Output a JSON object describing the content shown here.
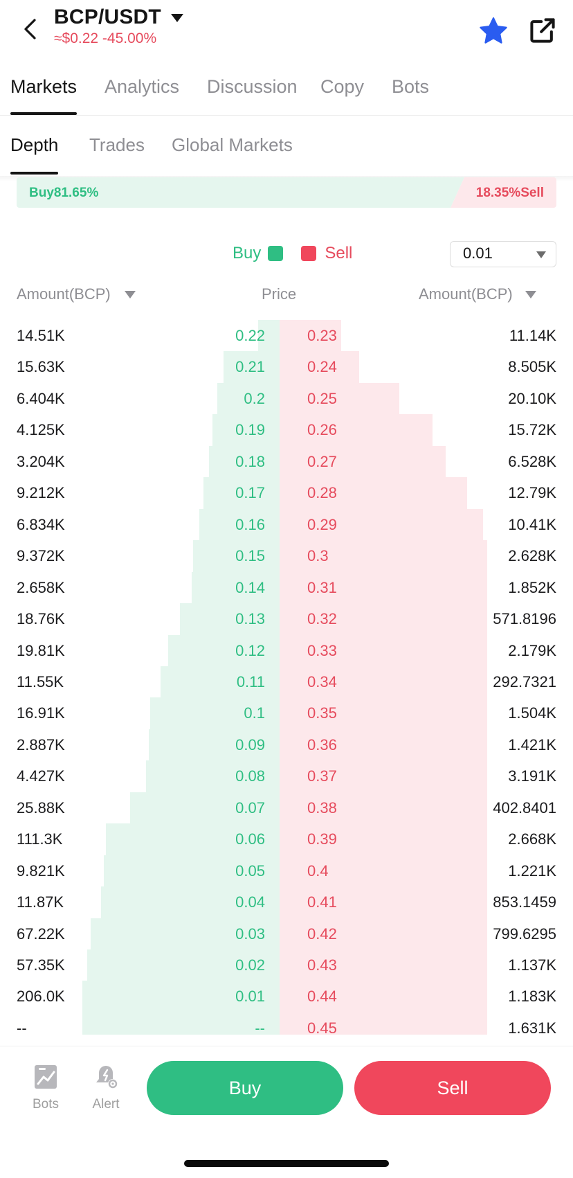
{
  "header": {
    "pair": "BCP/USDT",
    "price_change": "≈$0.22 -45.00%"
  },
  "main_tabs": [
    {
      "label": "Markets",
      "active": true
    },
    {
      "label": "Analytics",
      "active": false
    },
    {
      "label": "Discussion",
      "active": false
    },
    {
      "label": "Copy",
      "active": false
    },
    {
      "label": "Bots",
      "active": false
    }
  ],
  "sub_tabs": [
    {
      "label": "Depth",
      "active": true
    },
    {
      "label": "Trades",
      "active": false
    },
    {
      "label": "Global Markets",
      "active": false
    }
  ],
  "ratio": {
    "buy_label": "Buy81.65%",
    "sell_label": "18.35%Sell",
    "buy_fraction": 0.8165
  },
  "legend": {
    "buy": "Buy",
    "sell": "Sell"
  },
  "precision": "0.01",
  "columns": {
    "left": "Amount(BCP)",
    "center": "Price",
    "right": "Amount(BCP)"
  },
  "colors": {
    "buy": "#2fbe83",
    "sell": "#f0475c",
    "buy_depth": "#e5f6ee",
    "sell_depth": "#fde8eb"
  },
  "order_book": [
    {
      "bid_amount": "14.51K",
      "bid_price": "0.22",
      "ask_price": "0.23",
      "ask_amount": "11.14K",
      "bid_depth": 0.098,
      "ask_depth": 0.101
    },
    {
      "bid_amount": "15.63K",
      "bid_price": "0.21",
      "ask_price": "0.24",
      "ask_amount": "8.505K",
      "bid_depth": 0.253,
      "ask_depth": 0.131
    },
    {
      "bid_amount": "6.404K",
      "bid_price": "0.2",
      "ask_price": "0.25",
      "ask_amount": "20.10K",
      "bid_depth": 0.281,
      "ask_depth": 0.196
    },
    {
      "bid_amount": "4.125K",
      "bid_price": "0.19",
      "ask_price": "0.26",
      "ask_amount": "15.72K",
      "bid_depth": 0.302,
      "ask_depth": 0.251
    },
    {
      "bid_amount": "3.204K",
      "bid_price": "0.18",
      "ask_price": "0.27",
      "ask_amount": "6.528K",
      "bid_depth": 0.318,
      "ask_depth": 0.272
    },
    {
      "bid_amount": "9.212K",
      "bid_price": "0.17",
      "ask_price": "0.28",
      "ask_amount": "12.79K",
      "bid_depth": 0.344,
      "ask_depth": 0.307
    },
    {
      "bid_amount": "6.834K",
      "bid_price": "0.16",
      "ask_price": "0.29",
      "ask_amount": "10.41K",
      "bid_depth": 0.363,
      "ask_depth": 0.334
    },
    {
      "bid_amount": "9.372K",
      "bid_price": "0.15",
      "ask_price": "0.3",
      "ask_amount": "2.628K",
      "bid_depth": 0.39,
      "ask_depth": 0.341
    },
    {
      "bid_amount": "2.658K",
      "bid_price": "0.14",
      "ask_price": "0.31",
      "ask_amount": "1.852K",
      "bid_depth": 0.397,
      "ask_depth": 0.347
    },
    {
      "bid_amount": "18.76K",
      "bid_price": "0.13",
      "ask_price": "0.32",
      "ask_amount": "571.8196",
      "bid_depth": 0.449,
      "ask_depth": 0.348
    },
    {
      "bid_amount": "19.81K",
      "bid_price": "0.12",
      "ask_price": "0.33",
      "ask_amount": "2.179K",
      "bid_depth": 0.504,
      "ask_depth": 0.354
    },
    {
      "bid_amount": "11.55K",
      "bid_price": "0.11",
      "ask_price": "0.34",
      "ask_amount": "292.7321",
      "bid_depth": 0.536,
      "ask_depth": 0.355
    },
    {
      "bid_amount": "16.91K",
      "bid_price": "0.1",
      "ask_price": "0.35",
      "ask_amount": "1.504K",
      "bid_depth": 0.583,
      "ask_depth": 0.359
    },
    {
      "bid_amount": "2.887K",
      "bid_price": "0.09",
      "ask_price": "0.36",
      "ask_amount": "1.421K",
      "bid_depth": 0.591,
      "ask_depth": 0.363
    },
    {
      "bid_amount": "4.427K",
      "bid_price": "0.08",
      "ask_price": "0.37",
      "ask_amount": "3.191K",
      "bid_depth": 0.603,
      "ask_depth": 0.371
    },
    {
      "bid_amount": "25.88K",
      "bid_price": "0.07",
      "ask_price": "0.38",
      "ask_amount": "402.8401",
      "bid_depth": 0.675,
      "ask_depth": 0.373
    },
    {
      "bid_amount": "111.3K",
      "bid_price": "0.06",
      "ask_price": "0.39",
      "ask_amount": "2.668K",
      "bid_depth": 0.785,
      "ask_depth": 0.38
    },
    {
      "bid_amount": "9.821K",
      "bid_price": "0.05",
      "ask_price": "0.4",
      "ask_amount": "1.221K",
      "bid_depth": 0.794,
      "ask_depth": 0.384
    },
    {
      "bid_amount": "11.87K",
      "bid_price": "0.04",
      "ask_price": "0.41",
      "ask_amount": "853.1459",
      "bid_depth": 0.806,
      "ask_depth": 0.386
    },
    {
      "bid_amount": "67.22K",
      "bid_price": "0.03",
      "ask_price": "0.42",
      "ask_amount": "799.6295",
      "bid_depth": 0.854,
      "ask_depth": 0.388
    },
    {
      "bid_amount": "57.35K",
      "bid_price": "0.02",
      "ask_price": "0.43",
      "ask_amount": "1.137K",
      "bid_depth": 0.87,
      "ask_depth": 0.391
    },
    {
      "bid_amount": "206.0K",
      "bid_price": "0.01",
      "ask_price": "0.44",
      "ask_amount": "1.183K",
      "bid_depth": 0.89,
      "ask_depth": 0.394
    },
    {
      "bid_amount": "--",
      "bid_price": "--",
      "ask_price": "0.45",
      "ask_amount": "1.631K",
      "bid_depth": 0.89,
      "ask_depth": 0.399
    }
  ],
  "bottom_nav": {
    "bots_label": "Bots",
    "alert_label": "Alert",
    "buy_label": "Buy",
    "sell_label": "Sell"
  }
}
